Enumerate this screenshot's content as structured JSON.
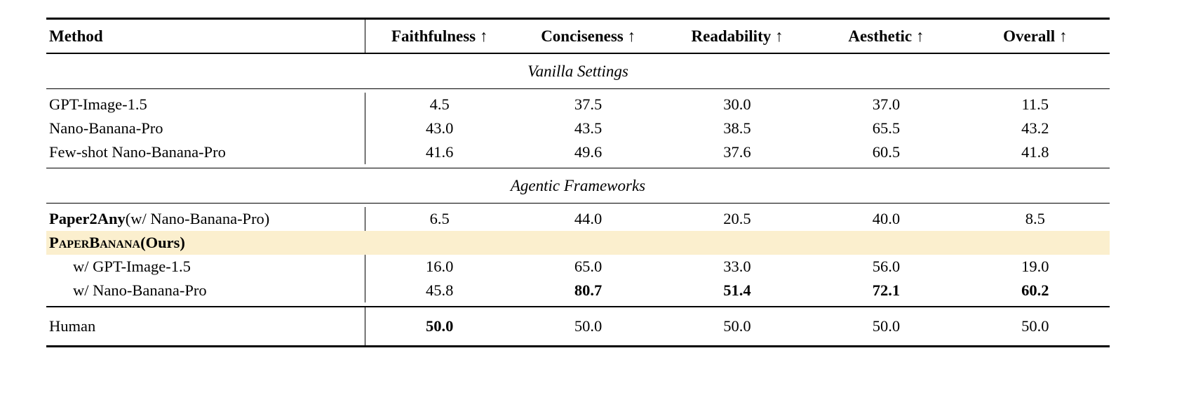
{
  "table": {
    "highlight_color": "#FBEFCE",
    "columns": [
      "Method",
      "Faithfulness ↑",
      "Conciseness ↑",
      "Readability ↑",
      "Aesthetic ↑",
      "Overall ↑"
    ],
    "sections": [
      {
        "title": "Vanilla Settings",
        "rows": [
          {
            "method": "GPT-Image-1.5",
            "values": [
              "4.5",
              "37.5",
              "30.0",
              "37.0",
              "11.5"
            ]
          },
          {
            "method": "Nano-Banana-Pro",
            "values": [
              "43.0",
              "43.5",
              "38.5",
              "65.5",
              "43.2"
            ]
          },
          {
            "method": "Few-shot Nano-Banana-Pro",
            "values": [
              "41.6",
              "49.6",
              "37.6",
              "60.5",
              "41.8"
            ]
          }
        ]
      },
      {
        "title": "Agentic Frameworks",
        "rows": [
          {
            "method_strong": "Paper2Any",
            "method_suffix": " (w/ Nano-Banana-Pro)",
            "values": [
              "6.5",
              "44.0",
              "20.5",
              "40.0",
              "8.5"
            ]
          },
          {
            "method_smallcaps": "PaperBanana",
            "method_suffix": " (Ours)",
            "highlighted": true,
            "values": [
              "",
              "",
              "",
              "",
              ""
            ]
          },
          {
            "method": "w/ GPT-Image-1.5",
            "values": [
              "16.0",
              "65.0",
              "33.0",
              "56.0",
              "19.0"
            ]
          },
          {
            "method": "w/ Nano-Banana-Pro",
            "values": [
              "45.8",
              "80.7",
              "51.4",
              "72.1",
              "60.2"
            ]
          }
        ]
      }
    ],
    "human_row": {
      "method": "Human",
      "values": [
        "50.0",
        "50.0",
        "50.0",
        "50.0",
        "50.0"
      ]
    }
  }
}
